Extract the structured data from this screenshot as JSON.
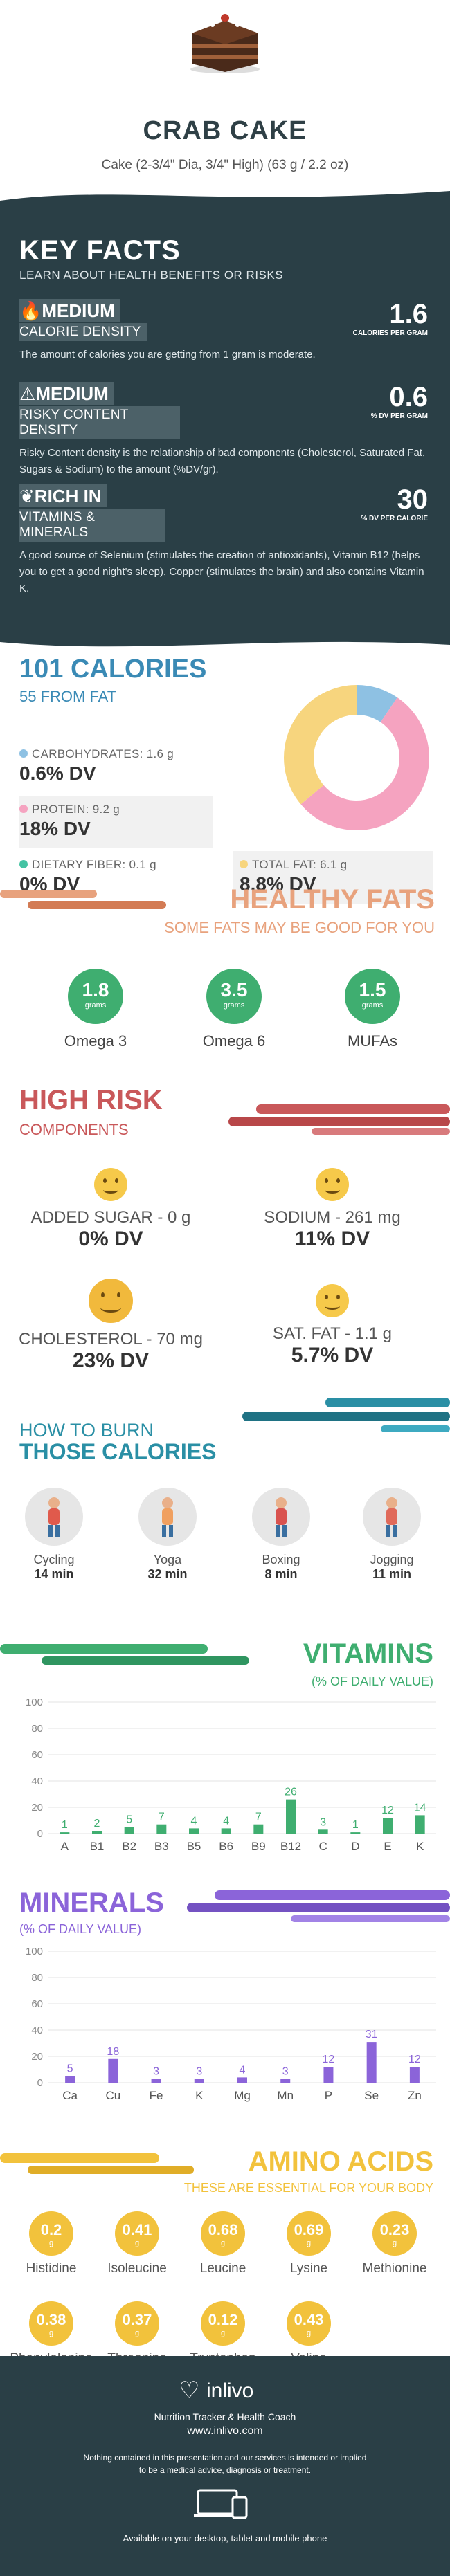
{
  "header": {
    "title": "CRAB CAKE",
    "subtitle": "Cake (2-3/4\" Dia, 3/4\" High) (63 g / 2.2 oz)"
  },
  "key_facts": {
    "title": "KEY FACTS",
    "subtitle": "LEARN ABOUT HEALTH BENEFITS OR RISKS",
    "blocks": [
      {
        "icon": "flame-icon",
        "level": "MEDIUM",
        "label": "CALORIE DENSITY",
        "value": "1.6",
        "unit": "CALORIES PER GRAM",
        "desc": "The amount of calories you are getting from 1 gram is moderate."
      },
      {
        "icon": "warning-icon",
        "level": "MEDIUM",
        "label": "RISKY CONTENT DENSITY",
        "value": "0.6",
        "unit": "% DV PER GRAM",
        "desc": "Risky Content density is the relationship of bad components (Cholesterol, Saturated Fat, Sugars & Sodium) to the amount (%DV/gr)."
      },
      {
        "icon": "leaf-icon",
        "level": "RICH  IN",
        "label": "VITAMINS & MINERALS",
        "value": "30",
        "unit": "% DV PER CALORIE",
        "desc": "A good source of Selenium (stimulates the creation of antioxidants), Vitamin B12 (helps you to get a good night's sleep), Copper (stimulates the brain) and also contains Vitamin K."
      }
    ]
  },
  "calories": {
    "title": "101 CALORIES",
    "from_fat": "55 FROM FAT",
    "carbs": {
      "label": "CARBOHYDRATES: 1.6 g",
      "dv": "0.6% DV",
      "color": "#8ec1e3"
    },
    "protein": {
      "label": "PROTEIN: 9.2 g",
      "dv": "18% DV",
      "color": "#f5a3c0"
    },
    "fiber": {
      "label": "DIETARY FIBER: 0.1 g",
      "dv": "0% DV",
      "color": "#45c3a3"
    },
    "fat": {
      "label": "TOTAL FAT: 6.1 g",
      "dv": "8.8% DV",
      "color": "#f7d57e"
    },
    "donut": [
      {
        "name": "carbs",
        "value": 1.6,
        "color": "#8ec1e3"
      },
      {
        "name": "protein",
        "value": 9.2,
        "color": "#f5a3c0"
      },
      {
        "name": "fat",
        "value": 6.1,
        "color": "#f7d57e"
      }
    ]
  },
  "healthy_fats": {
    "title": "HEALTHY FATS",
    "subtitle": "SOME FATS MAY BE GOOD FOR YOU",
    "unit": "grams",
    "items": [
      {
        "value": "1.8",
        "name": "Omega 3"
      },
      {
        "value": "3.5",
        "name": "Omega 6"
      },
      {
        "value": "1.5",
        "name": "MUFAs"
      }
    ]
  },
  "high_risk": {
    "title": "HIGH RISK",
    "subtitle": "COMPONENTS",
    "items": [
      {
        "label": "ADDED SUGAR - 0 g",
        "dv": "0% DV"
      },
      {
        "label": "SODIUM - 261 mg",
        "dv": "11% DV"
      },
      {
        "label": "CHOLESTEROL - 70 mg",
        "dv": "23% DV"
      },
      {
        "label": "SAT. FAT - 1.1 g",
        "dv": "5.7% DV"
      }
    ]
  },
  "burn": {
    "title1": "HOW TO BURN",
    "title2": "THOSE CALORIES",
    "items": [
      {
        "name": "Cycling",
        "time": "14 min"
      },
      {
        "name": "Yoga",
        "time": "32 min"
      },
      {
        "name": "Boxing",
        "time": "8 min"
      },
      {
        "name": "Jogging",
        "time": "11 min"
      }
    ]
  },
  "vitamins": {
    "title": "VITAMINS",
    "subtitle": "(% OF DAILY VALUE)"
  },
  "minerals": {
    "title": "MINERALS",
    "subtitle": "(% OF DAILY VALUE)"
  },
  "chart_data": [
    {
      "type": "bar",
      "categories": [
        "A",
        "B1",
        "B2",
        "B3",
        "B5",
        "B6",
        "B9",
        "B12",
        "C",
        "D",
        "E",
        "K"
      ],
      "values": [
        1,
        2,
        5,
        7,
        4,
        4,
        7,
        26,
        3,
        1,
        12,
        14
      ],
      "ylim": [
        0,
        100
      ],
      "yticks": [
        0,
        20,
        40,
        60,
        80,
        100
      ],
      "color": "#3fae70"
    },
    {
      "type": "bar",
      "categories": [
        "Ca",
        "Cu",
        "Fe",
        "K",
        "Mg",
        "Mn",
        "P",
        "Se",
        "Zn"
      ],
      "values": [
        5,
        18,
        3,
        3,
        4,
        3,
        12,
        31,
        12
      ],
      "ylim": [
        0,
        100
      ],
      "yticks": [
        0,
        20,
        40,
        60,
        80,
        100
      ],
      "color": "#8b64d9"
    }
  ],
  "amino": {
    "title": "AMINO ACIDS",
    "subtitle": "THESE ARE ESSENTIAL FOR YOUR BODY",
    "unit": "g",
    "items": [
      {
        "value": "0.2",
        "name": "Histidine"
      },
      {
        "value": "0.41",
        "name": "Isoleucine"
      },
      {
        "value": "0.68",
        "name": "Leucine"
      },
      {
        "value": "0.69",
        "name": "Lysine"
      },
      {
        "value": "0.23",
        "name": "Methionine"
      },
      {
        "value": "0.38",
        "name": "Phenylalanine"
      },
      {
        "value": "0.37",
        "name": "Threonine"
      },
      {
        "value": "0.12",
        "name": "Tryptophan"
      },
      {
        "value": "0.43",
        "name": "Valine"
      }
    ]
  },
  "footer": {
    "brand": "inlivo",
    "tagline": "Nutrition Tracker & Health Coach",
    "url": "www.inlivo.com",
    "disclaimer1": "Nothing contained in this presentation and our services is intended or implied",
    "disclaimer2": "to be a medical advice, diagnosis or treatment.",
    "devices": "Available on your desktop, tablet and mobile phone"
  }
}
